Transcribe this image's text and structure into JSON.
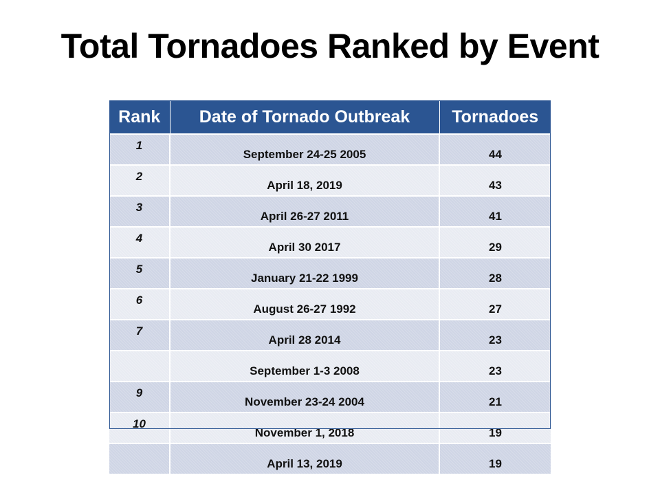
{
  "slide": {
    "title": "Total Tornadoes Ranked by Event"
  },
  "table": {
    "headers": {
      "rank": "Rank",
      "date": "Date of Tornado Outbreak",
      "count": "Tornadoes"
    },
    "rows": [
      {
        "rank": "1",
        "date": "September 24-25  2005",
        "count": "44"
      },
      {
        "rank": "2",
        "date": "April 18, 2019",
        "count": "43"
      },
      {
        "rank": "3",
        "date": "April 26-27  2011",
        "count": "41"
      },
      {
        "rank": "4",
        "date": "April 30  2017",
        "count": "29"
      },
      {
        "rank": "5",
        "date": "January 21-22  1999",
        "count": "28"
      },
      {
        "rank": "6",
        "date": "August 26-27  1992",
        "count": "27"
      },
      {
        "rank": "7",
        "date": "April 28  2014",
        "count": "23"
      },
      {
        "rank": "",
        "date": "September 1-3  2008",
        "count": "23"
      },
      {
        "rank": "9",
        "date": "November 23-24  2004",
        "count": "21"
      },
      {
        "rank": "10",
        "date": "November 1, 2018",
        "count": "19"
      },
      {
        "rank": "",
        "date": "April 13, 2019",
        "count": "19"
      }
    ],
    "colors": {
      "header_bg": "#2b5592",
      "row_odd": "#cfd5e5",
      "row_even": "#e8ebf2"
    }
  }
}
